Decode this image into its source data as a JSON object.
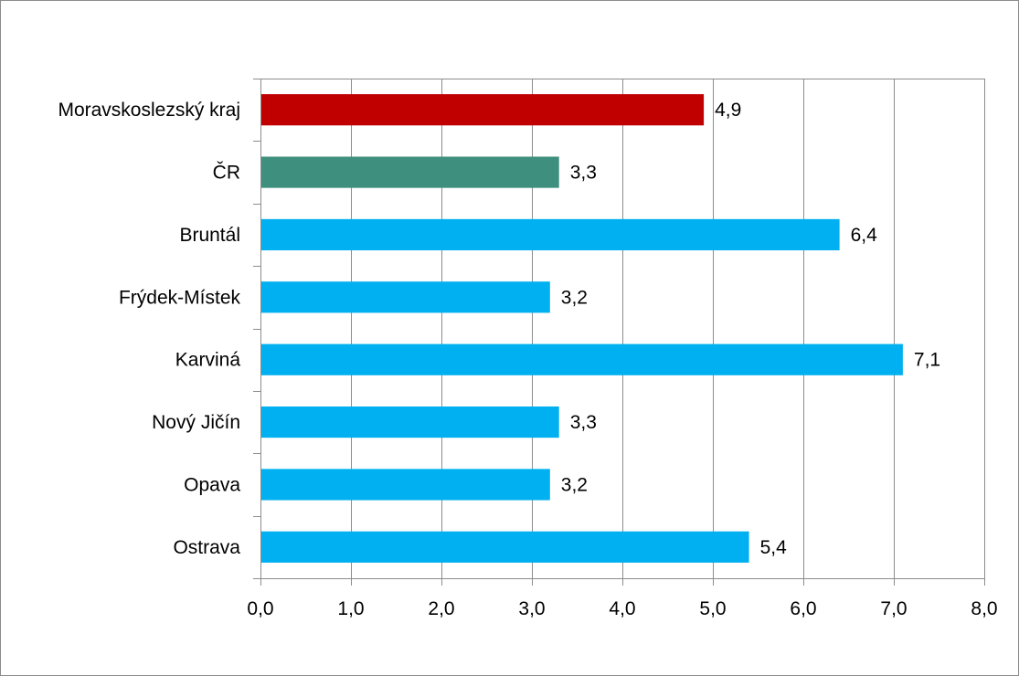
{
  "chart_data": {
    "type": "bar",
    "orientation": "horizontal",
    "title": "",
    "xlabel": "",
    "ylabel": "",
    "categories": [
      "Moravskoslezský kraj",
      "ČR",
      "Bruntál",
      "Frýdek-Místek",
      "Karviná",
      "Nový Jičín",
      "Opava",
      "Ostrava"
    ],
    "values": [
      4.9,
      3.3,
      6.4,
      3.2,
      7.1,
      3.3,
      3.2,
      5.4
    ],
    "value_labels": [
      "4,9",
      "3,3",
      "6,4",
      "3,2",
      "7,1",
      "3,3",
      "3,2",
      "5,4"
    ],
    "bar_colors": [
      "#c00000",
      "#3f8f7f",
      "#00b0f0",
      "#00b0f0",
      "#00b0f0",
      "#00b0f0",
      "#00b0f0",
      "#00b0f0"
    ],
    "xlim": [
      0,
      8
    ],
    "x_ticks": [
      0,
      1,
      2,
      3,
      4,
      5,
      6,
      7,
      8
    ],
    "x_tick_labels": [
      "0,0",
      "1,0",
      "2,0",
      "3,0",
      "4,0",
      "5,0",
      "6,0",
      "7,0",
      "8,0"
    ],
    "grid": "vertical",
    "legend": "none"
  },
  "colors": {
    "gridline": "#8c8c8c",
    "axis": "#8c8c8c",
    "frame_border": "#8c8c8c"
  }
}
